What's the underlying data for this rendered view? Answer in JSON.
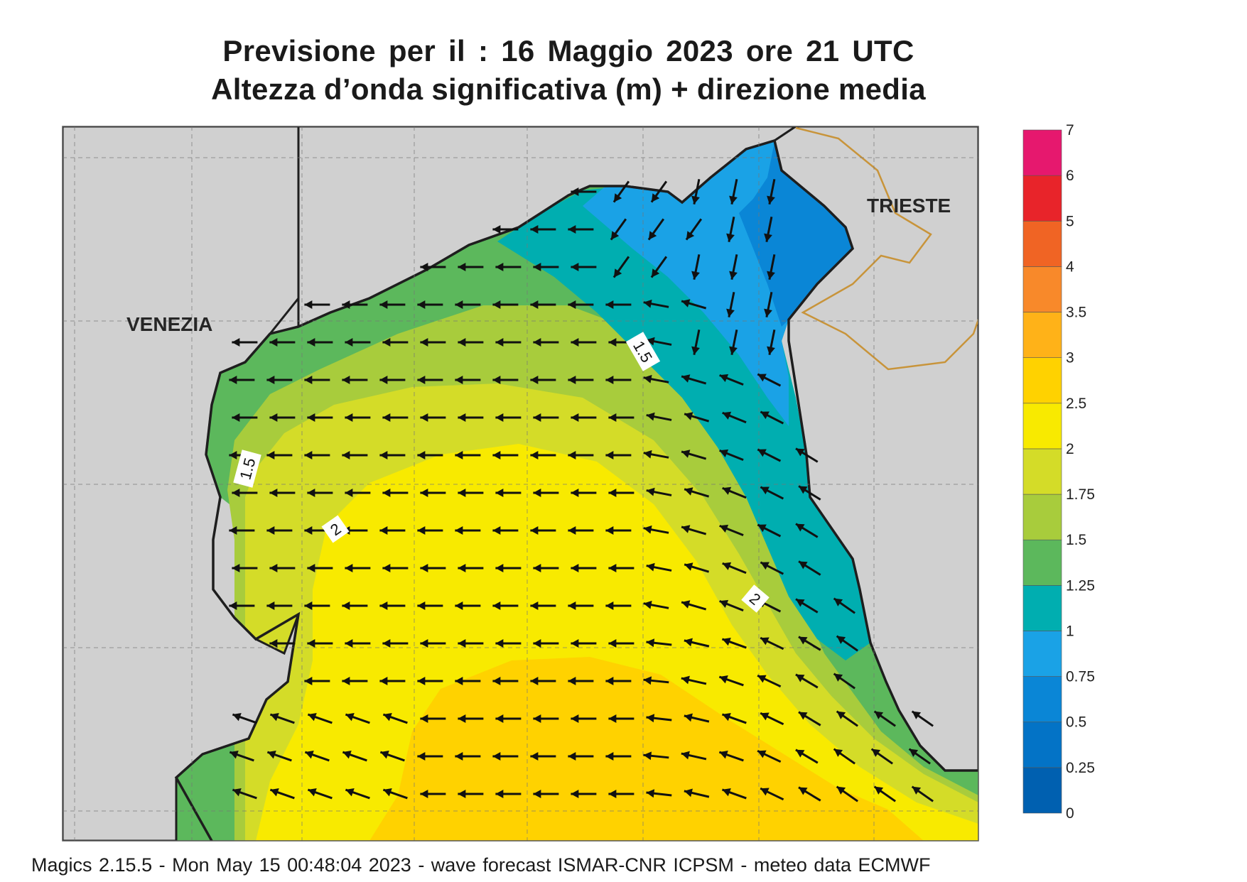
{
  "header": {
    "line1": "Previsione per il  :  16   Maggio  2023   ore 21 UTC",
    "line2": "Altezza d’onda significativa (m) + direzione media"
  },
  "map": {
    "cities": {
      "venezia": "VENEZIA",
      "trieste": "TRIESTE"
    },
    "contour_labels": [
      "1.5",
      "1.5",
      "2",
      "2"
    ],
    "colors": {
      "land": "#d0d0d0",
      "border": "#c8943a",
      "coast": "#1e1e1e",
      "arrow": "#111111"
    }
  },
  "legend": {
    "ticks": [
      "0",
      "0.25",
      "0.5",
      "0.75",
      "1",
      "1.25",
      "1.5",
      "1.75",
      "2",
      "2.5",
      "3",
      "3.5",
      "4",
      "5",
      "6",
      "7"
    ],
    "colors": [
      "#0060b0",
      "#0373c6",
      "#0a86d6",
      "#1aa2e6",
      "#00aeb0",
      "#5cb85c",
      "#a8cc3c",
      "#d4dc28",
      "#f8ea00",
      "#ffd200",
      "#ffb218",
      "#f8892a",
      "#f06424",
      "#e8242a",
      "#e6186e"
    ]
  },
  "footer": {
    "text": "Magics 2.15.5 - Mon May 15 00:48:04 2023 - wave forecast  ISMAR-CNR  ICPSM - meteo data    ECMWF"
  }
}
